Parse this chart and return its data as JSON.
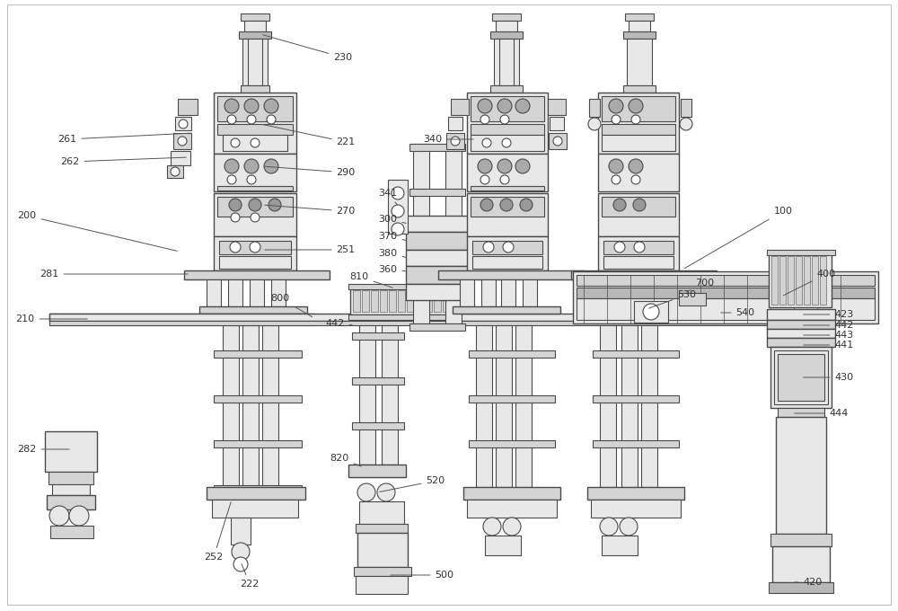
{
  "bg_color": "#ffffff",
  "line_color": "#4a4a4a",
  "fill_light": "#e8e8e8",
  "fill_mid": "#d4d4d4",
  "fill_dark": "#b8b8b8",
  "label_color": "#333333",
  "border_color": "#cccccc",
  "figsize": [
    10.0,
    6.8
  ],
  "dpi": 100
}
